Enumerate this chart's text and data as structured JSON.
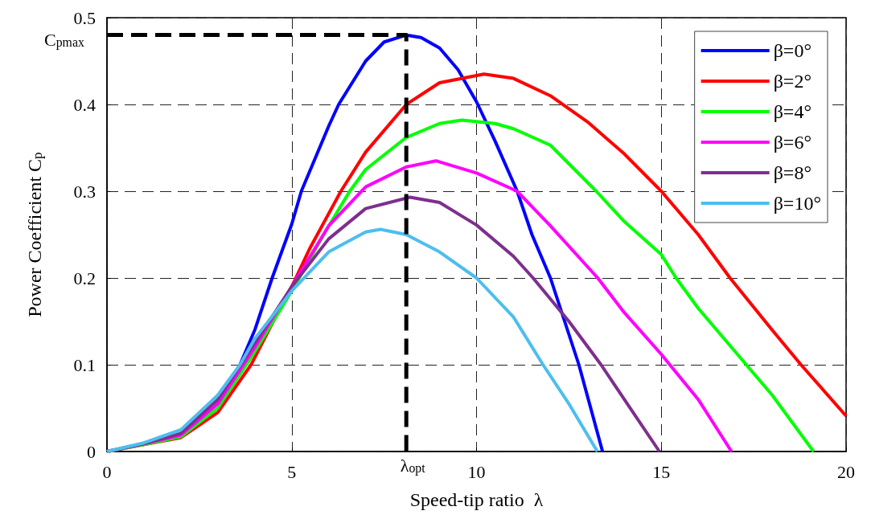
{
  "chart_data": {
    "type": "line",
    "xlabel": "Speed-tip ratio  λ",
    "ylabel": "Power Coefficient C$_{p}$",
    "xlim": [
      0,
      20
    ],
    "ylim": [
      0,
      0.5
    ],
    "xticks": [
      0,
      5,
      10,
      15,
      20
    ],
    "yticks": [
      0,
      0.1,
      0.2,
      0.3,
      0.4,
      0.5
    ],
    "grid": true,
    "legend": "top right",
    "marker": "none",
    "line_style": "solid",
    "annotations": [
      {
        "text": "C$_{pmax}$",
        "x": 0,
        "y": 0.48
      },
      {
        "text": "λ$_{opt}$",
        "x": 8.1,
        "y": 0
      }
    ],
    "series": [
      {
        "name": "β=0°",
        "color": "#0000ff",
        "x": [
          3,
          3.6,
          4,
          4.47,
          5,
          5.26,
          6,
          6.27,
          7,
          7.5,
          8.1,
          8.5,
          9,
          9.5,
          10,
          10.5,
          11.1,
          11.5,
          12,
          12.77,
          13.41
        ],
        "values": [
          0.055,
          0.1,
          0.14,
          0.2,
          0.262,
          0.3,
          0.375,
          0.4,
          0.45,
          0.472,
          0.48,
          0.477,
          0.465,
          0.44,
          0.403,
          0.358,
          0.3,
          0.25,
          0.2,
          0.1,
          0
        ]
      },
      {
        "name": "β=2°",
        "color": "#ff0000",
        "x": [
          0,
          1,
          2,
          3,
          3.9,
          4.5,
          5,
          5.5,
          6.33,
          7,
          8.1,
          9,
          10.2,
          11,
          12,
          13,
          14,
          15,
          16,
          16.86,
          18,
          18.78,
          20
        ],
        "values": [
          0,
          0.008,
          0.016,
          0.045,
          0.1,
          0.15,
          0.19,
          0.235,
          0.3,
          0.345,
          0.4,
          0.425,
          0.435,
          0.43,
          0.41,
          0.38,
          0.343,
          0.3,
          0.25,
          0.2,
          0.14,
          0.1,
          0.041
        ]
      },
      {
        "name": "β=4°",
        "color": "#00ff00",
        "x": [
          0,
          1,
          2,
          3,
          4,
          5,
          6,
          6.57,
          7,
          8.1,
          9,
          9.6,
          10.5,
          11,
          12,
          13.24,
          14,
          15,
          15.4,
          16,
          17.3,
          18,
          19.12
        ],
        "values": [
          0,
          0.008,
          0.017,
          0.05,
          0.115,
          0.185,
          0.26,
          0.3,
          0.325,
          0.362,
          0.378,
          0.382,
          0.378,
          0.372,
          0.353,
          0.3,
          0.265,
          0.227,
          0.2,
          0.165,
          0.1,
          0.065,
          0
        ]
      },
      {
        "name": "β=6°",
        "color": "#ff00ff",
        "x": [
          0,
          1,
          2,
          3,
          4,
          5,
          6,
          7,
          8.1,
          8.9,
          10,
          11.1,
          12,
          13.28,
          14,
          15,
          15.23,
          16,
          16.9
        ],
        "values": [
          0,
          0.009,
          0.019,
          0.055,
          0.12,
          0.19,
          0.26,
          0.305,
          0.328,
          0.335,
          0.321,
          0.3,
          0.26,
          0.2,
          0.16,
          0.112,
          0.1,
          0.06,
          0
        ]
      },
      {
        "name": "β=8°",
        "color": "#7e2f8e",
        "x": [
          0,
          1,
          2,
          3,
          4,
          5,
          6,
          7,
          8.2,
          9,
          10,
          11,
          11.53,
          12.5,
          13.37,
          14,
          14.95
        ],
        "values": [
          0,
          0.009,
          0.021,
          0.06,
          0.125,
          0.19,
          0.245,
          0.28,
          0.293,
          0.287,
          0.261,
          0.225,
          0.2,
          0.15,
          0.1,
          0.06,
          0
        ]
      },
      {
        "name": "β=10°",
        "color": "#4dbeee",
        "x": [
          0,
          1,
          2,
          3,
          3.6,
          4,
          5,
          6,
          7,
          7.4,
          8.1,
          9,
          10,
          11,
          11.8,
          12.5,
          13.27
        ],
        "values": [
          0,
          0.01,
          0.025,
          0.065,
          0.1,
          0.13,
          0.185,
          0.23,
          0.253,
          0.256,
          0.25,
          0.23,
          0.2,
          0.155,
          0.1,
          0.055,
          0
        ]
      },
      {
        "color": "#000000",
        "line_style": "dashed",
        "x": [
          0,
          8.1,
          8.1
        ],
        "values": [
          0.48,
          0.48,
          0
        ]
      }
    ]
  }
}
